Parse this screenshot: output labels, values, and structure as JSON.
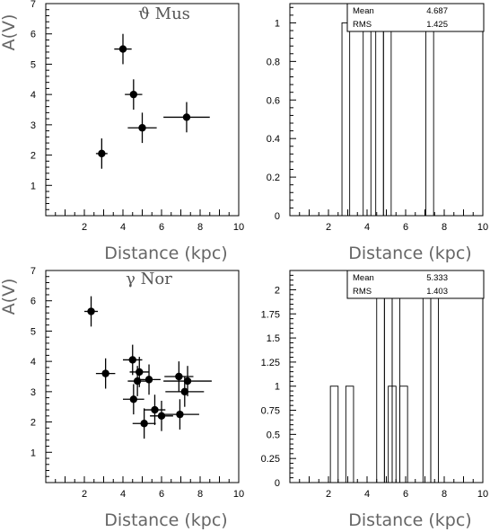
{
  "chart_data": [
    {
      "id": "scatter-top",
      "type": "scatter",
      "title": "ϑ Mus",
      "xlabel": "Distance (kpc)",
      "ylabel": "A(V)",
      "xlim": [
        0,
        10
      ],
      "ylim": [
        0,
        7
      ],
      "xticks": [
        2,
        4,
        6,
        8,
        10
      ],
      "yticks": [
        1,
        2,
        3,
        4,
        5,
        6,
        7
      ],
      "points": [
        {
          "x": 2.9,
          "y": 2.05,
          "xerr": 0.3,
          "yerr": 0.5
        },
        {
          "x": 4.0,
          "y": 5.5,
          "xerr": 0.45,
          "yerr": 0.5
        },
        {
          "x": 4.55,
          "y": 4.0,
          "xerr": 0.45,
          "yerr": 0.5
        },
        {
          "x": 5.0,
          "y": 2.9,
          "xerr": 0.75,
          "yerr": 0.5
        },
        {
          "x": 7.3,
          "y": 3.25,
          "xerr": 1.2,
          "yerr": 0.5
        }
      ]
    },
    {
      "id": "hist-top",
      "type": "bar",
      "xlabel": "Distance (kpc)",
      "xlim": [
        0,
        10
      ],
      "ylim": [
        0,
        1.1
      ],
      "xticks": [
        2,
        4,
        6,
        8,
        10
      ],
      "yticks": [
        0,
        0.2,
        0.4,
        0.6,
        0.8,
        1
      ],
      "ytick_labels": [
        "0",
        "0.2",
        "0.4",
        "0.6",
        "0.8",
        "1"
      ],
      "bin_width": 0.4,
      "bins": [
        {
          "x0": 2.7,
          "count": 1
        },
        {
          "x0": 3.8,
          "count": 1
        },
        {
          "x0": 4.45,
          "count": 1
        },
        {
          "x0": 4.85,
          "count": 1
        },
        {
          "x0": 7.05,
          "count": 1
        }
      ],
      "stats": {
        "mean_label": "Mean",
        "mean": "4.687",
        "rms_label": "RMS",
        "rms": "1.425"
      }
    },
    {
      "id": "scatter-bottom",
      "type": "scatter",
      "title": "γ Nor",
      "xlabel": "Distance (kpc)",
      "ylabel": "A(V)",
      "xlim": [
        0,
        10
      ],
      "ylim": [
        0,
        7
      ],
      "xticks": [
        2,
        4,
        6,
        8,
        10
      ],
      "yticks": [
        1,
        2,
        3,
        4,
        5,
        6,
        7
      ],
      "points": [
        {
          "x": 2.35,
          "y": 5.65,
          "xerr": 0.35,
          "yerr": 0.5
        },
        {
          "x": 3.1,
          "y": 3.6,
          "xerr": 0.5,
          "yerr": 0.5
        },
        {
          "x": 4.5,
          "y": 4.05,
          "xerr": 0.5,
          "yerr": 0.5
        },
        {
          "x": 4.85,
          "y": 3.65,
          "xerr": 0.5,
          "yerr": 0.5
        },
        {
          "x": 4.75,
          "y": 3.35,
          "xerr": 0.5,
          "yerr": 0.5
        },
        {
          "x": 5.35,
          "y": 3.4,
          "xerr": 0.6,
          "yerr": 0.5
        },
        {
          "x": 4.55,
          "y": 2.75,
          "xerr": 0.55,
          "yerr": 0.5
        },
        {
          "x": 5.65,
          "y": 2.4,
          "xerr": 0.55,
          "yerr": 0.5
        },
        {
          "x": 6.0,
          "y": 2.2,
          "xerr": 0.6,
          "yerr": 0.5
        },
        {
          "x": 5.1,
          "y": 1.95,
          "xerr": 0.6,
          "yerr": 0.5
        },
        {
          "x": 6.9,
          "y": 3.5,
          "xerr": 0.75,
          "yerr": 0.5
        },
        {
          "x": 7.35,
          "y": 3.35,
          "xerr": 1.25,
          "yerr": 0.5
        },
        {
          "x": 7.2,
          "y": 3.0,
          "xerr": 1.0,
          "yerr": 0.5
        },
        {
          "x": 6.95,
          "y": 2.25,
          "xerr": 1.0,
          "yerr": 0.5
        }
      ]
    },
    {
      "id": "hist-bottom",
      "type": "bar",
      "xlabel": "Distance (kpc)",
      "xlim": [
        0,
        10
      ],
      "ylim": [
        0,
        2.2
      ],
      "xticks": [
        2,
        4,
        6,
        8,
        10
      ],
      "yticks": [
        0,
        0.25,
        0.5,
        0.75,
        1,
        1.25,
        1.5,
        1.75,
        2
      ],
      "ytick_labels": [
        "0",
        "0.25",
        "0.5",
        "0.75",
        "1",
        "1.25",
        "1.5",
        "1.75",
        "2"
      ],
      "bin_width": 0.4,
      "bins": [
        {
          "x0": 2.1,
          "count": 1
        },
        {
          "x0": 2.9,
          "count": 1
        },
        {
          "x0": 4.5,
          "count": 2
        },
        {
          "x0": 4.9,
          "count": 2
        },
        {
          "x0": 5.3,
          "count": 2
        },
        {
          "x0": 5.7,
          "count": 1
        },
        {
          "x0": 5.1,
          "count": 1
        },
        {
          "x0": 6.9,
          "count": 2
        },
        {
          "x0": 7.3,
          "count": 2
        }
      ],
      "stats": {
        "mean_label": "Mean",
        "mean": "5.333",
        "rms_label": "RMS",
        "rms": "1.403"
      }
    }
  ]
}
